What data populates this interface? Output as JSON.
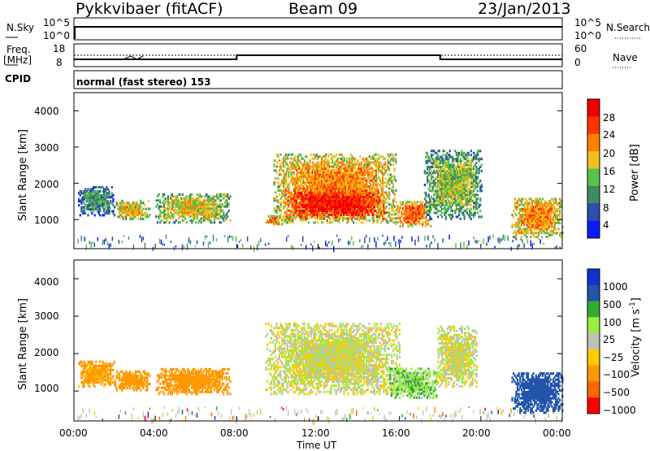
{
  "header": {
    "station": "Pykkvibaer (fitACF)",
    "beam": "Beam 09",
    "date": "23/Jan/2013"
  },
  "summary_panels": {
    "nsky_label": "N.Sky",
    "nsky_ticks": [
      "10^5",
      "10^0"
    ],
    "nsearch_label": "N.Search",
    "nsearch_ticks": [
      "10^5",
      "10^0"
    ],
    "freq_label": "Freq.",
    "freq_unit": "[MHz]",
    "freq_ticks": [
      "18",
      "8"
    ],
    "nave_label": "Nave",
    "nave_ticks": [
      "60",
      "0"
    ],
    "cpid_label": "CPID",
    "cpid_text": "normal (fast stereo) 153"
  },
  "colors": {
    "power_scale": [
      "#0a1cff",
      "#2c4ea8",
      "#3f8a62",
      "#58c24a",
      "#f0c020",
      "#ff7f00",
      "#ff3300",
      "#ee0000"
    ],
    "velocity_scale": [
      "#ff0000",
      "#ff6600",
      "#ff9900",
      "#ffcc00",
      "#c0c0b8",
      "#99ee44",
      "#33aa33",
      "#2255aa",
      "#1133cc"
    ],
    "background_scatter_gray": "#c8c6bc"
  },
  "power_colorbar": {
    "label": "Power [dB]",
    "ticks": [
      "28",
      "24",
      "20",
      "16",
      "12",
      "8",
      "4"
    ]
  },
  "velocity_colorbar": {
    "label_main": "Velocity",
    "label_unit": "[m s",
    "label_sup": "-1",
    "label_close": "]",
    "ticks": [
      "1000",
      "500",
      "100",
      "25",
      "−25",
      "−100",
      "−500",
      "−1000"
    ]
  },
  "chart_data": [
    {
      "type": "heatmap",
      "title": "",
      "quantity": "Power",
      "ylabel": "Slant Range [km]",
      "ylim": [
        200,
        4500
      ],
      "yticks": [
        "4000",
        "3000",
        "2000",
        "1000"
      ],
      "xlim": [
        0,
        24
      ],
      "xticks": [],
      "scale_db": [
        0,
        30
      ],
      "grid": false,
      "echo_regions": [
        {
          "t_start": 0.2,
          "t_end": 2.0,
          "r_low": 1100,
          "r_high": 1900,
          "power_db": 10
        },
        {
          "t_start": 2.0,
          "t_end": 3.7,
          "r_low": 1000,
          "r_high": 1500,
          "power_db": 18
        },
        {
          "t_start": 4.0,
          "t_end": 7.7,
          "r_low": 900,
          "r_high": 1700,
          "power_db": 16
        },
        {
          "t_start": 9.4,
          "t_end": 10.2,
          "r_low": 800,
          "r_high": 1100,
          "power_db": 22
        },
        {
          "t_start": 9.8,
          "t_end": 15.8,
          "r_low": 900,
          "r_high": 2800,
          "power_db": 20
        },
        {
          "t_start": 10.3,
          "t_end": 15.3,
          "r_low": 1000,
          "r_high": 1800,
          "power_db": 27
        },
        {
          "t_start": 15.8,
          "t_end": 17.5,
          "r_low": 800,
          "r_high": 1500,
          "power_db": 22
        },
        {
          "t_start": 17.2,
          "t_end": 20.0,
          "r_low": 1000,
          "r_high": 2900,
          "power_db": 14
        },
        {
          "t_start": 21.5,
          "t_end": 24.0,
          "r_low": 500,
          "r_high": 1600,
          "power_db": 20
        }
      ]
    },
    {
      "type": "heatmap",
      "title": "",
      "quantity": "Velocity",
      "ylabel": "Slant Range [km]",
      "ylim": [
        200,
        4500
      ],
      "yticks": [
        "4000",
        "3000",
        "2000",
        "1000"
      ],
      "xlabel": "Time UT",
      "xlim": [
        0,
        24
      ],
      "xticks": [
        "00:00",
        "04:00",
        "08:00",
        "12:00",
        "16:00",
        "20:00",
        "00:00"
      ],
      "scale_ms": [
        -1000,
        1000
      ],
      "grid": false,
      "echo_regions": [
        {
          "t_start": 0.2,
          "t_end": 2.0,
          "r_low": 1100,
          "r_high": 1800,
          "velocity_ms": -150
        },
        {
          "t_start": 2.0,
          "t_end": 3.7,
          "r_low": 1000,
          "r_high": 1500,
          "velocity_ms": -300
        },
        {
          "t_start": 4.0,
          "t_end": 7.7,
          "r_low": 900,
          "r_high": 1600,
          "velocity_ms": -200
        },
        {
          "t_start": 9.4,
          "t_end": 16.0,
          "r_low": 900,
          "r_high": 2800,
          "velocity_ms": 0
        },
        {
          "t_start": 15.5,
          "t_end": 17.8,
          "r_low": 800,
          "r_high": 1600,
          "velocity_ms": 80
        },
        {
          "t_start": 17.8,
          "t_end": 19.8,
          "r_low": 1100,
          "r_high": 2700,
          "velocity_ms": 0
        },
        {
          "t_start": 21.5,
          "t_end": 24.0,
          "r_low": 400,
          "r_high": 1500,
          "velocity_ms": 700
        }
      ]
    }
  ]
}
